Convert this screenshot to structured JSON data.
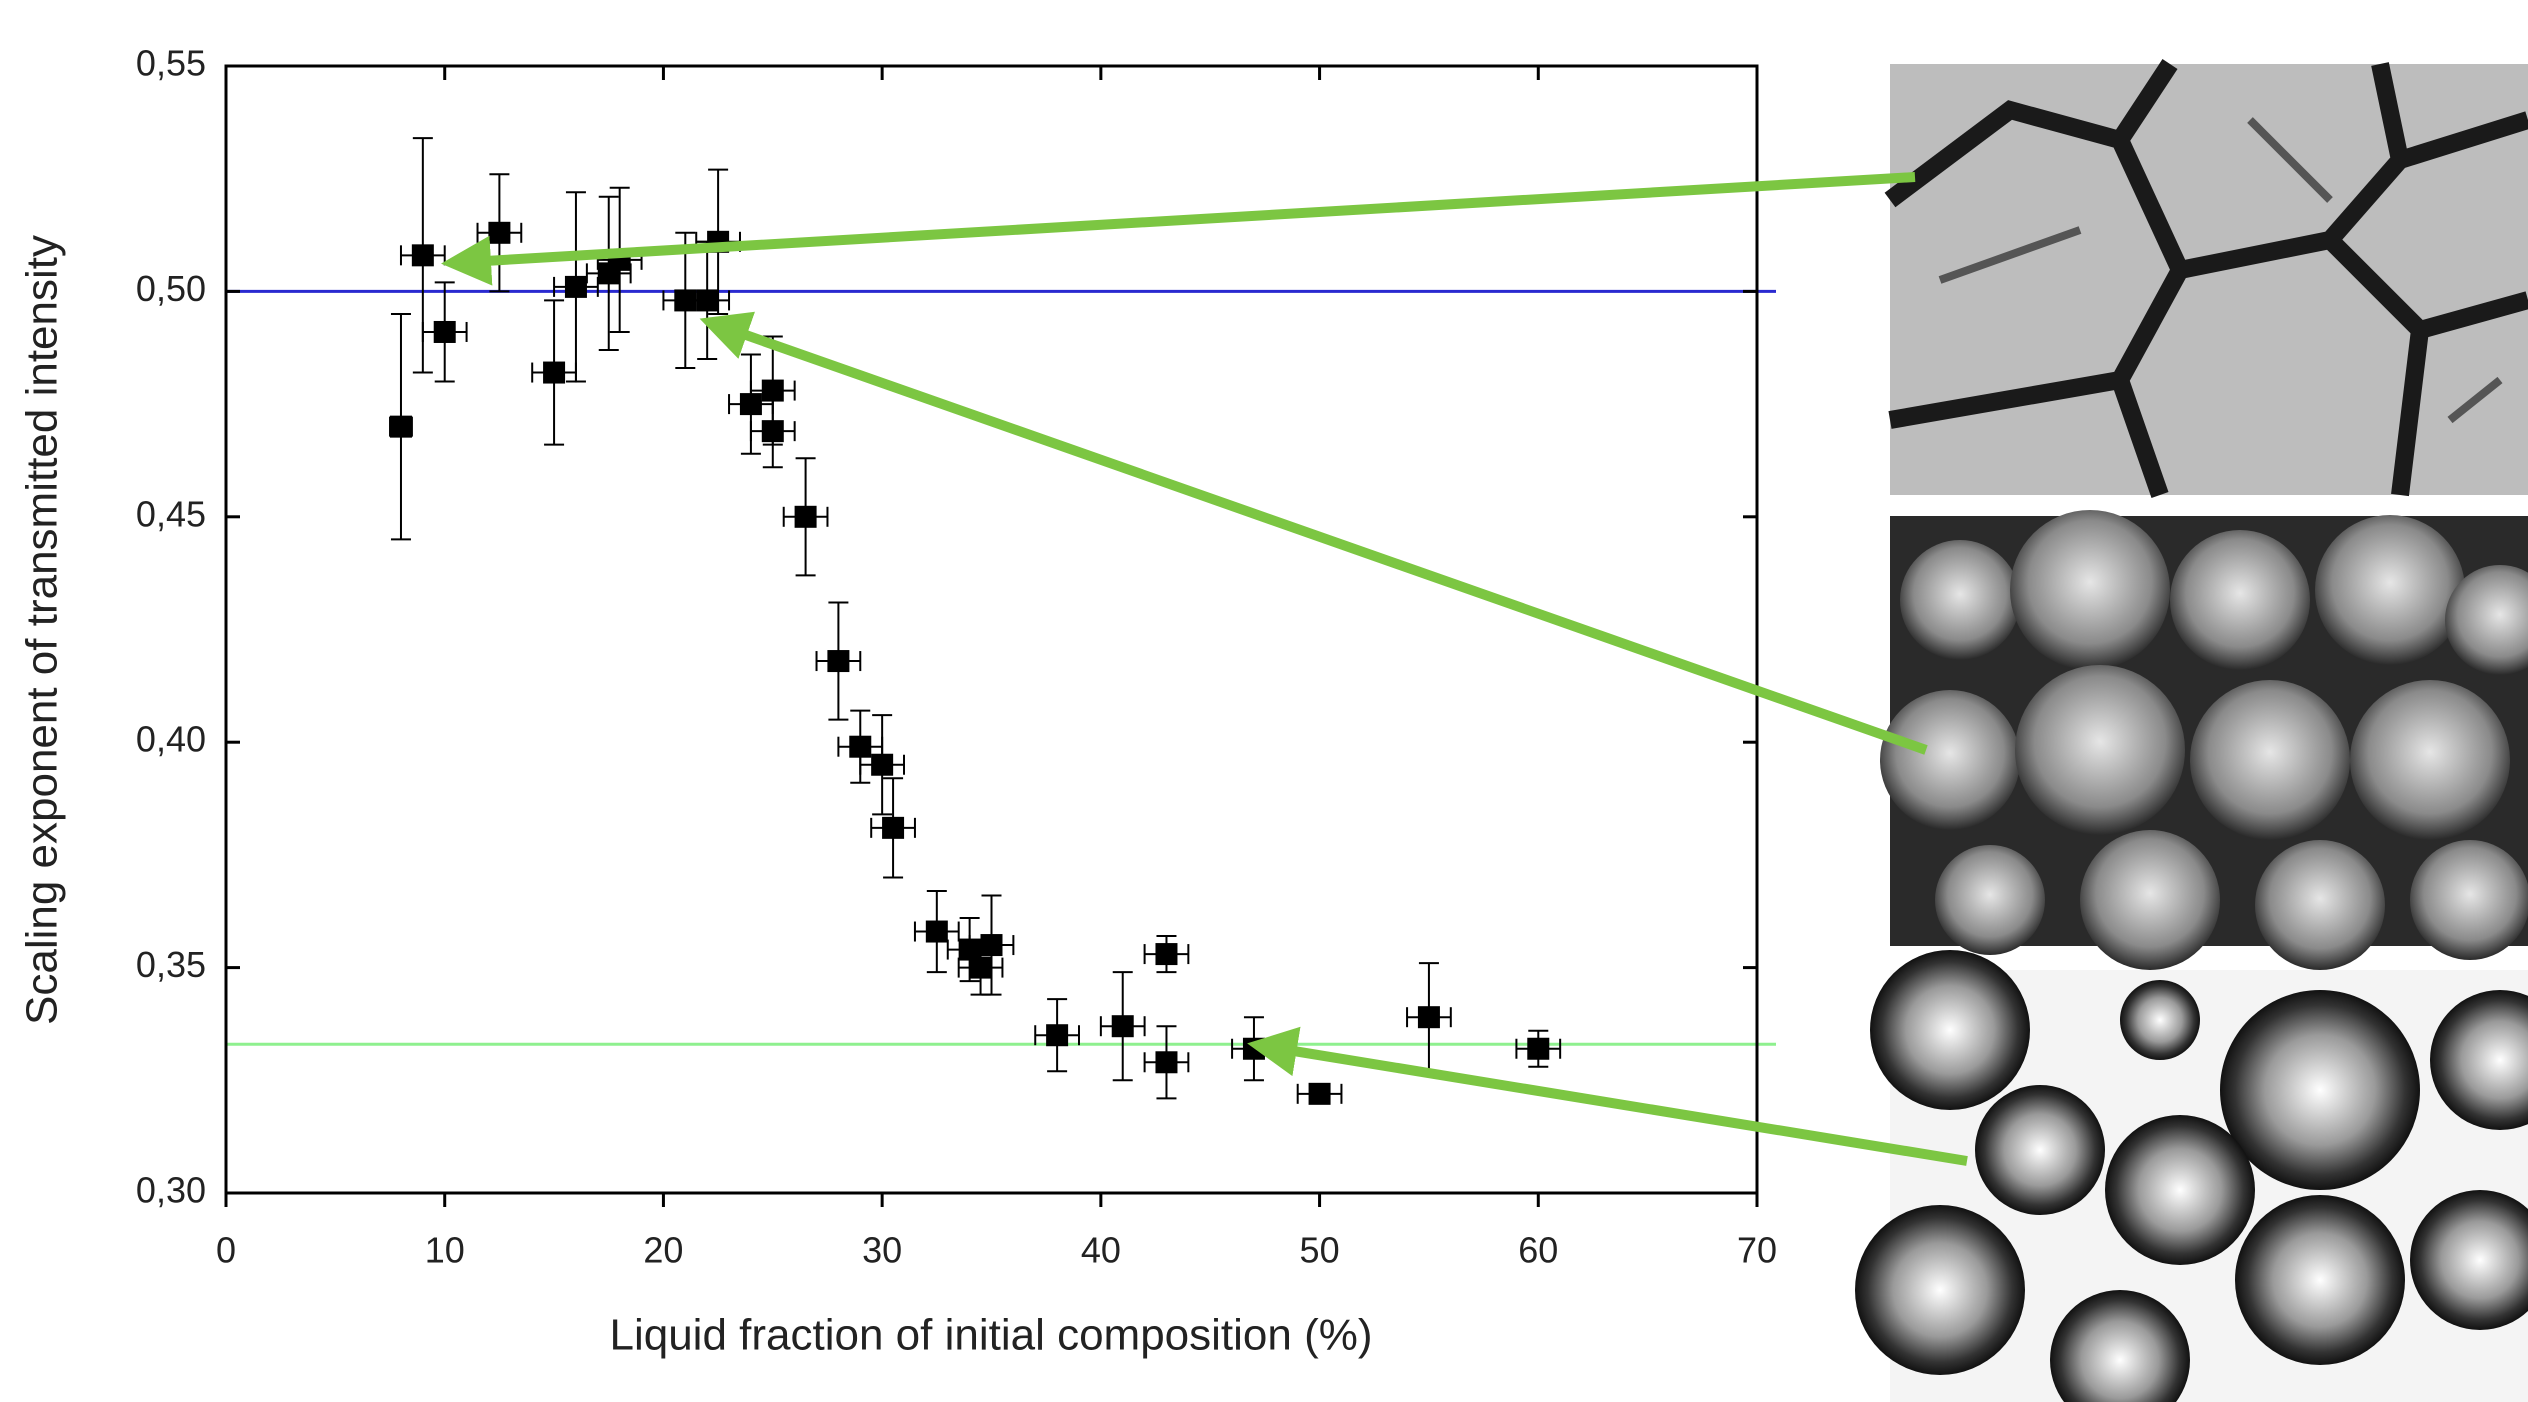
{
  "chart_data": {
    "type": "scatter",
    "x_label": "Liquid fraction of initial composition (%)",
    "y_label": "Scaling exponent of transmitted intensity",
    "xlim": [
      0,
      70
    ],
    "ylim": [
      0.3,
      0.55
    ],
    "xticks": [
      0,
      10,
      20,
      30,
      40,
      50,
      60,
      70
    ],
    "yticks": [
      {
        "value": 0.3,
        "label": "0,30"
      },
      {
        "value": 0.35,
        "label": "0,35"
      },
      {
        "value": 0.4,
        "label": "0,40"
      },
      {
        "value": 0.45,
        "label": "0,45"
      },
      {
        "value": 0.5,
        "label": "0,50"
      },
      {
        "value": 0.55,
        "label": "0,55"
      }
    ],
    "reference_lines": [
      {
        "value": 0.5,
        "color": "#2a2ad0"
      },
      {
        "value": 0.333,
        "color": "#8ef08e"
      }
    ],
    "series": [
      {
        "color": "#000000",
        "x": [
          8,
          9,
          10,
          12.5,
          15,
          16,
          17.5,
          18,
          21,
          22,
          22.5,
          24,
          25,
          25,
          26.5,
          28,
          29,
          30,
          30.5,
          32.5,
          34,
          34.5,
          35,
          38,
          41,
          43,
          43,
          47,
          50,
          55,
          60
        ],
        "values": [
          0.47,
          0.508,
          0.491,
          0.513,
          0.482,
          0.501,
          0.504,
          0.507,
          0.498,
          0.498,
          0.511,
          0.475,
          0.478,
          0.469,
          0.45,
          0.418,
          0.399,
          0.395,
          0.381,
          0.358,
          0.354,
          0.35,
          0.355,
          0.335,
          0.337,
          0.353,
          0.329,
          0.332,
          0.322,
          0.339,
          0.332
        ],
        "xerr": [
          0.5,
          1,
          1,
          1,
          1,
          1,
          1,
          1,
          1,
          1,
          1,
          1,
          1,
          1,
          1,
          1,
          1,
          1,
          1,
          1,
          1,
          1,
          1,
          1,
          1,
          1,
          1,
          1,
          1,
          1,
          1
        ],
        "yerr": [
          0.025,
          0.026,
          0.011,
          0.013,
          0.016,
          0.021,
          0.017,
          0.016,
          0.015,
          0.013,
          0.016,
          0.011,
          0.012,
          0.008,
          0.013,
          0.013,
          0.008,
          0.011,
          0.011,
          0.009,
          0.007,
          0.006,
          0.011,
          0.008,
          0.012,
          0.004,
          0.008,
          0.007,
          0.002,
          0.012,
          0.004
        ]
      }
    ]
  }
}
